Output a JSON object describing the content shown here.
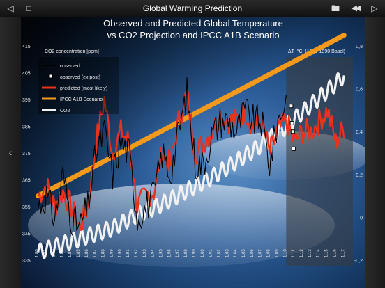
{
  "app": {
    "title": "Global Warming Prediction",
    "nav_back_icon": "triangle-left",
    "nav_forward_icon": "triangle-right",
    "fullscreen_icon": "square-outline",
    "folder_icon": "folder",
    "rewind_icon": "double-triangle-left"
  },
  "chart_data": {
    "type": "line",
    "title_line1": "Observed and Predicted Global Temperature",
    "title_line2": "vs CO2 Projection  and IPCC A1B Scenario",
    "left_axis_label": "CO2 concentration [ppm]",
    "right_axis_label": "ΔT [°C] (1961-1990 Basel)",
    "left_ticks": [
      335,
      345,
      355,
      365,
      375,
      385,
      395,
      405,
      415
    ],
    "left_tick_labels": [
      "335",
      "345",
      "355",
      "365",
      "375",
      "385",
      "395",
      "405",
      "415"
    ],
    "left_range": [
      335,
      415
    ],
    "right_ticks": [
      -0.2,
      0,
      0.2,
      0.4,
      0.6,
      0.8
    ],
    "right_tick_labels": [
      "-0,2",
      "0",
      "0,2",
      "0,4",
      "0,6",
      "0,8"
    ],
    "right_range": [
      -0.2,
      0.8
    ],
    "x_range": [
      1979.6,
      2017.4
    ],
    "x_ticks": [
      1980,
      1981,
      1982,
      1983,
      1984,
      1985,
      1986,
      1987,
      1988,
      1989,
      1990,
      1991,
      1992,
      1993,
      1994,
      1995,
      1996,
      1997,
      1998,
      1999,
      2000,
      2001,
      2002,
      2003,
      2004,
      2005,
      2006,
      2007,
      2008,
      2009,
      2010,
      2011,
      2012,
      2013,
      2014,
      2015,
      2016,
      2017
    ],
    "x_tick_labels": [
      "1.80",
      "1.81",
      "1.82",
      "1.83",
      "1.84",
      "1.85",
      "1.86",
      "1.87",
      "1.88",
      "1.89",
      "1.90",
      "1.91",
      "1.92",
      "1.93",
      "1.94",
      "1.95",
      "1.96",
      "1.97",
      "1.98",
      "1.99",
      "1.00",
      "1.01",
      "1.02",
      "1.03",
      "1.04",
      "1.05",
      "1.06",
      "1.07",
      "1.08",
      "1.09",
      "1.10",
      "1.11",
      "1.12",
      "1.13",
      "1.14",
      "1.15",
      "1.16",
      "1.17"
    ],
    "legend": [
      {
        "label": "observed",
        "color": "#000000",
        "style": "line"
      },
      {
        "label": "observed (ex post)",
        "color": "#ffffff",
        "style": "marker"
      },
      {
        "label": "predicted (most likely)",
        "color": "#e8321e",
        "style": "line"
      },
      {
        "label": "IPCC A1B Scenario",
        "color": "#f39a1c",
        "style": "line"
      },
      {
        "label": "CO2",
        "color": "#f2f2f2",
        "style": "line"
      }
    ],
    "series": [
      {
        "name": "IPCC A1B Scenario",
        "axis": "right",
        "x": [
          1980,
          2017
        ],
        "y": [
          0.1,
          0.85
        ]
      },
      {
        "name": "CO2",
        "axis": "left",
        "x": [
          1980,
          1983,
          1986,
          1989,
          1992,
          1995,
          1998,
          2001,
          2004,
          2007,
          2010,
          2013,
          2016,
          2017
        ],
        "y": [
          338,
          341,
          344,
          347,
          352,
          356,
          361,
          366,
          372,
          378,
          385,
          393,
          401,
          404
        ],
        "seasonal_amplitude_ppm": 3
      },
      {
        "name": "observed",
        "axis": "right",
        "x": [
          1980,
          1981,
          1982,
          1983,
          1984,
          1985,
          1986,
          1987,
          1988,
          1989,
          1990,
          1991,
          1992,
          1993,
          1994,
          1995,
          1996,
          1997,
          1998,
          1999,
          2000,
          2001,
          2002,
          2003,
          2004,
          2005,
          2006,
          2007,
          2008,
          2009,
          2010
        ],
        "y": [
          0.05,
          0.1,
          0.0,
          0.2,
          0.0,
          -0.05,
          0.05,
          0.3,
          0.4,
          0.2,
          0.35,
          0.3,
          0.0,
          0.05,
          0.1,
          0.3,
          0.2,
          0.4,
          0.58,
          0.25,
          0.25,
          0.38,
          0.45,
          0.45,
          0.4,
          0.5,
          0.45,
          0.45,
          0.25,
          0.45,
          0.55
        ]
      },
      {
        "name": "predicted (most likely)",
        "axis": "right",
        "x": [
          1980,
          1981,
          1982,
          1983,
          1984,
          1985,
          1986,
          1987,
          1988,
          1989,
          1990,
          1991,
          1992,
          1993,
          1994,
          1995,
          1996,
          1997,
          1998,
          1999,
          2000,
          2001,
          2002,
          2003,
          2004,
          2005,
          2006,
          2007,
          2008,
          2009,
          2010,
          2011,
          2012,
          2013,
          2014,
          2015,
          2016,
          2017
        ],
        "y": [
          0.1,
          0.15,
          0.05,
          0.12,
          0.05,
          -0.05,
          0.05,
          0.35,
          0.55,
          0.3,
          0.4,
          0.35,
          0.05,
          0.1,
          0.12,
          0.3,
          0.25,
          0.45,
          0.58,
          0.3,
          0.35,
          0.4,
          0.48,
          0.45,
          0.45,
          0.5,
          0.42,
          0.45,
          0.3,
          0.4,
          0.45,
          0.35,
          0.4,
          0.4,
          0.45,
          0.5,
          0.35,
          0.42
        ]
      },
      {
        "name": "observed (ex post)",
        "axis": "right",
        "x": [
          2010.6,
          2010.7,
          2010.8,
          2010.9
        ],
        "y": [
          0.52,
          0.44,
          0.4,
          0.32
        ]
      }
    ],
    "forecast_region_start": 2010,
    "colors": {
      "title": "#ffffff",
      "axis_text": "#e6e6e6",
      "panel": "#4a4a4a",
      "ocean": "#1d4f8a"
    }
  }
}
